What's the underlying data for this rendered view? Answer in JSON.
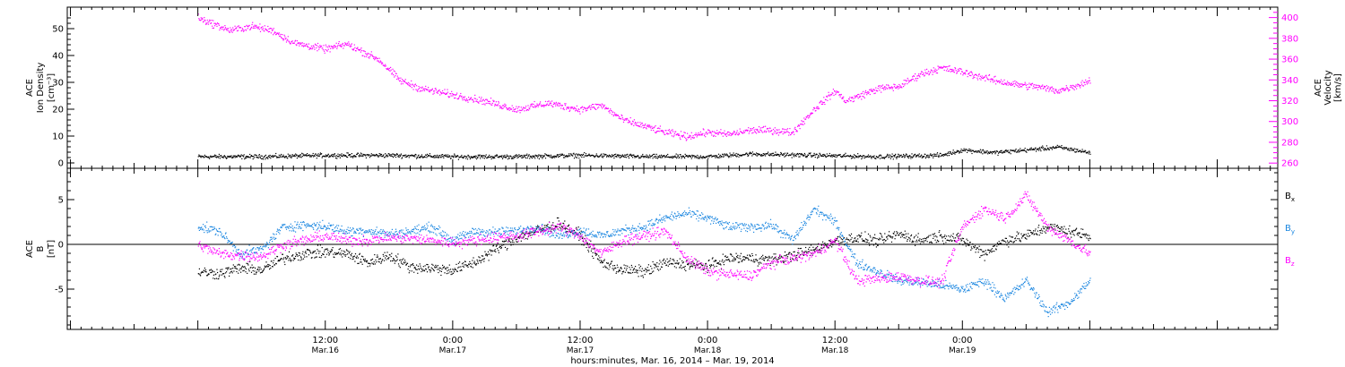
{
  "chart_data": [
    {
      "type": "scatter",
      "panel": "top",
      "ylabel": [
        "ACE",
        "Ion Density",
        "[cm⁻³]"
      ],
      "y2label": [
        "ACE",
        "Velocity",
        "[km/s]"
      ],
      "ylim": [
        -2,
        58
      ],
      "yticks": [
        "0",
        "10",
        "20",
        "30",
        "40",
        "50"
      ],
      "y2lim": [
        255,
        410
      ],
      "y2ticks": [
        "260",
        "280",
        "300",
        "320",
        "340",
        "360",
        "380",
        "400"
      ],
      "colors": {
        "density": "#000000",
        "velocity": "#ff00ff"
      },
      "series": [
        {
          "key": "density",
          "axis": "left",
          "noise": 0.7,
          "x": [
            0,
            6,
            12,
            18,
            24,
            30,
            36,
            42,
            48,
            52,
            58,
            64,
            70,
            72,
            75,
            78,
            81,
            84
          ],
          "y": [
            2.5,
            2.5,
            3,
            3,
            2.5,
            2.5,
            3,
            2.5,
            2.5,
            3.5,
            3,
            2.5,
            3,
            5,
            4,
            5,
            6,
            4
          ]
        },
        {
          "key": "velocity",
          "axis": "right",
          "noise": 3,
          "x": [
            0,
            3,
            5,
            7,
            9,
            12,
            14,
            17,
            19,
            21,
            24,
            27,
            30,
            33,
            36,
            38,
            40,
            44,
            46,
            48,
            50,
            52,
            54,
            56,
            58,
            60,
            61,
            64,
            66,
            68,
            70,
            72,
            75,
            77,
            79,
            81,
            83,
            84
          ],
          "y": [
            400,
            388,
            392,
            388,
            376,
            370,
            375,
            360,
            340,
            332,
            326,
            320,
            312,
            318,
            312,
            316,
            302,
            290,
            286,
            290,
            288,
            292,
            292,
            290,
            312,
            330,
            320,
            332,
            334,
            346,
            352,
            348,
            340,
            336,
            334,
            330,
            336,
            340
          ]
        }
      ]
    },
    {
      "type": "scatter",
      "panel": "bottom",
      "ylabel": [
        "ACE",
        "B",
        "[nT]"
      ],
      "ylim": [
        -9.5,
        8.5
      ],
      "yticks": [
        "-5",
        "0",
        "5"
      ],
      "zero_line": true,
      "legend": [
        {
          "key": "bx",
          "label": "B",
          "sub": "x",
          "color": "#000000"
        },
        {
          "key": "by",
          "label": "B",
          "sub": "y",
          "color": "#1a86e0"
        },
        {
          "key": "bz",
          "label": "B",
          "sub": "z",
          "color": "#ff00ff"
        }
      ],
      "series": [
        {
          "key": "bx",
          "noise": 0.55,
          "x": [
            0,
            2,
            4,
            6,
            8,
            10,
            12,
            14,
            16,
            18,
            20,
            22,
            24,
            26,
            28,
            30,
            32,
            34,
            36,
            38,
            40,
            42,
            44,
            46,
            48,
            50,
            52,
            54,
            56,
            58,
            60,
            62,
            64,
            66,
            68,
            70,
            72,
            74,
            76,
            78,
            80,
            82,
            84
          ],
          "y": [
            -3,
            -3.2,
            -2.6,
            -2.8,
            -1.5,
            -1,
            -0.8,
            -1,
            -2,
            -1.2,
            -2.5,
            -2.6,
            -2.8,
            -2,
            -0.5,
            0.8,
            1.6,
            2.4,
            1,
            -2,
            -2.8,
            -3,
            -2,
            -2.2,
            -2.4,
            -1.5,
            -1.5,
            -1.7,
            -1.2,
            -0.6,
            0.5,
            0.8,
            0.4,
            1.2,
            0.5,
            1,
            0.5,
            -1,
            0.5,
            1,
            2,
            1.5,
            1
          ]
        },
        {
          "key": "by",
          "noise": 0.45,
          "x": [
            0,
            2,
            4,
            6,
            8,
            10,
            12,
            14,
            16,
            18,
            20,
            22,
            24,
            26,
            28,
            30,
            32,
            34,
            36,
            38,
            40,
            42,
            44,
            46,
            48,
            50,
            52,
            54,
            56,
            58,
            60,
            62,
            64,
            66,
            68,
            70,
            72,
            74,
            76,
            78,
            80,
            82,
            84
          ],
          "y": [
            2,
            1.5,
            -1,
            -0.5,
            2,
            2.2,
            2.1,
            1.5,
            1.6,
            1.2,
            1.5,
            2,
            0.5,
            1.5,
            1.4,
            1.6,
            2,
            1,
            1.6,
            1,
            1.6,
            2,
            3,
            3.5,
            3,
            2,
            2,
            2.2,
            0.5,
            4,
            2.5,
            -2,
            -3,
            -4,
            -4.2,
            -4.5,
            -5,
            -4,
            -6,
            -4,
            -7.5,
            -6.5,
            -4
          ]
        },
        {
          "key": "bz",
          "noise": 0.5,
          "x": [
            0,
            2,
            4,
            6,
            8,
            10,
            12,
            14,
            16,
            18,
            20,
            22,
            24,
            26,
            28,
            30,
            32,
            34,
            36,
            38,
            40,
            42,
            44,
            46,
            48,
            50,
            52,
            54,
            56,
            58,
            60,
            62,
            64,
            66,
            68,
            70,
            72,
            74,
            76,
            78,
            80,
            82,
            84
          ],
          "y": [
            0,
            -1,
            -1.2,
            -1.3,
            0,
            0.5,
            1,
            0.5,
            0.5,
            0.8,
            0.7,
            0.5,
            0.2,
            0.5,
            0.8,
            1,
            1.5,
            2,
            1,
            -1,
            0.5,
            1,
            1.5,
            -1.5,
            -3,
            -3.3,
            -3.5,
            -2,
            -1.5,
            -1,
            0.5,
            -4,
            -3.8,
            -3.5,
            -4,
            -4.2,
            2,
            4,
            3,
            5.5,
            2,
            0.5,
            -1
          ]
        }
      ]
    }
  ],
  "x_axis": {
    "range_hours": [
      -12.3,
      101.7
    ],
    "ticks": [
      {
        "h": 12,
        "time": "12:00",
        "date": "Mar.16"
      },
      {
        "h": 24,
        "time": "0:00",
        "date": "Mar.17"
      },
      {
        "h": 36,
        "time": "12:00",
        "date": "Mar.17"
      },
      {
        "h": 48,
        "time": "0:00",
        "date": "Mar.18"
      },
      {
        "h": 60,
        "time": "12:00",
        "date": "Mar.18"
      },
      {
        "h": 72,
        "time": "0:00",
        "date": "Mar.19"
      }
    ],
    "title": "hours:minutes, Mar. 16, 2014 – Mar. 19, 2014"
  }
}
